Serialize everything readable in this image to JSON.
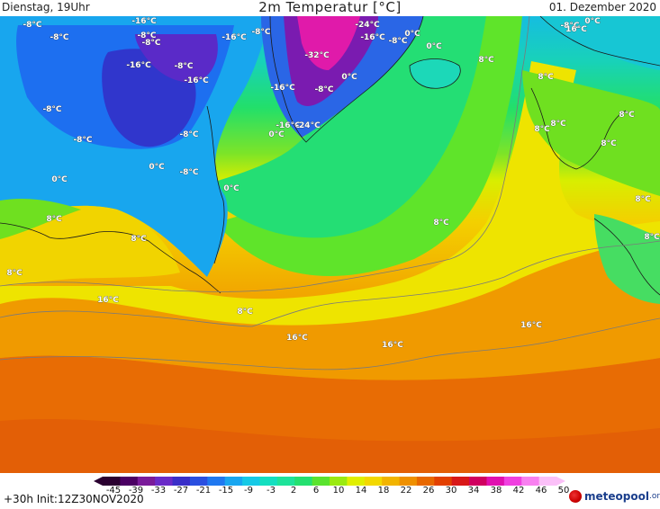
{
  "header": {
    "left": "Dienstag, 19Uhr",
    "title": "2m Temperatur [°C]",
    "right": "01. Dezember 2020"
  },
  "footer": {
    "init": "+30h Init:12Z30NOV2020",
    "logo_brand": "meteopool",
    "logo_tld": ".org"
  },
  "colorbar": {
    "ticks": [
      "-45",
      "-39",
      "-33",
      "-27",
      "-21",
      "-15",
      "-9",
      "-3",
      "2",
      "6",
      "10",
      "14",
      "18",
      "22",
      "26",
      "30",
      "34",
      "38",
      "42",
      "46",
      "50"
    ],
    "colors": [
      "#2a0030",
      "#4b0063",
      "#7a1b9a",
      "#6a2bc8",
      "#3a2fc8",
      "#2a4fe0",
      "#1f78f0",
      "#19a6f0",
      "#16c9e6",
      "#14dfc0",
      "#1ee39a",
      "#24e070",
      "#5ae32e",
      "#9aea10",
      "#e0ef00",
      "#f3d800",
      "#f2b400",
      "#ef9000",
      "#e86800",
      "#e24000",
      "#d81818",
      "#d00060",
      "#e010b0",
      "#f040e0",
      "#f880f0",
      "#fbc0f8"
    ]
  },
  "map": {
    "temperature_labels": [
      "-8°C",
      "-8°C",
      "-16°C",
      "-8°C",
      "-8°C",
      "-16°C",
      "-8°C",
      "-24°C",
      "-16°C",
      "-8°C",
      "0°C",
      "0°C",
      "0°C",
      "-8°C",
      "-8°C",
      "-16°C",
      "-8°C",
      "-16°C",
      "-32°C",
      "-8°C",
      "0°C",
      "8°C",
      "8°C",
      "-8°C",
      "-16°C",
      "-8°C",
      "-16°C",
      "-24°C",
      "0°C",
      "8°C",
      "8°C",
      "8°C",
      "8°C",
      "0°C",
      "-8°C",
      "0°C",
      "0°C",
      "8°C",
      "8°C",
      "8°C",
      "8°C",
      "8°C",
      "8°C",
      "16°C",
      "8°C",
      "16°C",
      "16°C",
      "16°C",
      "16°C"
    ]
  }
}
